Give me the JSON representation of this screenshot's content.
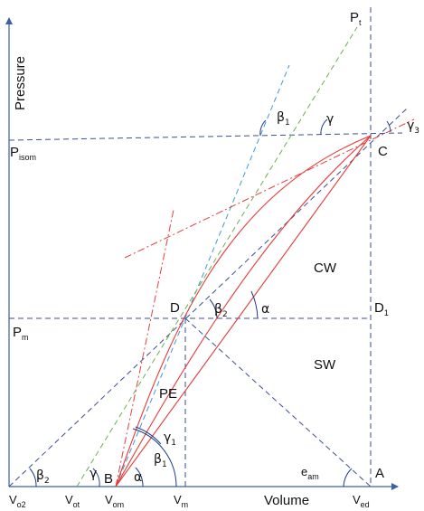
{
  "axes": {
    "y_label": "Pressure",
    "x_label": "Volume"
  },
  "points": {
    "B": "B",
    "C": "C",
    "D": "D",
    "D1": {
      "main": "D",
      "sub": "1"
    },
    "A": "A"
  },
  "regions": {
    "CW": "CW",
    "SW": "SW",
    "PE": "PE"
  },
  "pressure_marks": {
    "P_t": {
      "main": "P",
      "sub": "t"
    },
    "P_isom": {
      "main": "P",
      "sub": "isom"
    },
    "P_m": {
      "main": "P",
      "sub": "m"
    }
  },
  "volume_marks": {
    "V_o2": {
      "main": "V",
      "sub": "o2"
    },
    "V_ot": {
      "main": "V",
      "sub": "ot"
    },
    "V_om": {
      "main": "V",
      "sub": "om"
    },
    "V_m": {
      "main": "V",
      "sub": "m"
    },
    "V_ed": {
      "main": "V",
      "sub": "ed"
    }
  },
  "angles": {
    "beta1_top": {
      "main": "β",
      "sub": "1"
    },
    "gamma_top": {
      "main": "γ",
      "sub": ""
    },
    "gamma3": {
      "main": "γ",
      "sub": "3"
    },
    "beta2_D": {
      "main": "β",
      "sub": "2"
    },
    "alpha_D": {
      "main": "α",
      "sub": ""
    },
    "gamma1_B": {
      "main": "γ",
      "sub": "1"
    },
    "beta1_B": {
      "main": "β",
      "sub": "1"
    },
    "alpha_B": {
      "main": "α",
      "sub": ""
    },
    "beta2_left": {
      "main": "β",
      "sub": "2"
    },
    "gamma_left": {
      "main": "γ",
      "sub": ""
    },
    "e_am": {
      "main": "e",
      "sub": "am"
    }
  },
  "colors": {
    "axis": "#3b5fa8",
    "navy_dashed": "#3a4f92",
    "blue_dashed": "#3a9ad9",
    "green_dashed": "#6ab04c",
    "red": "#e53935"
  }
}
